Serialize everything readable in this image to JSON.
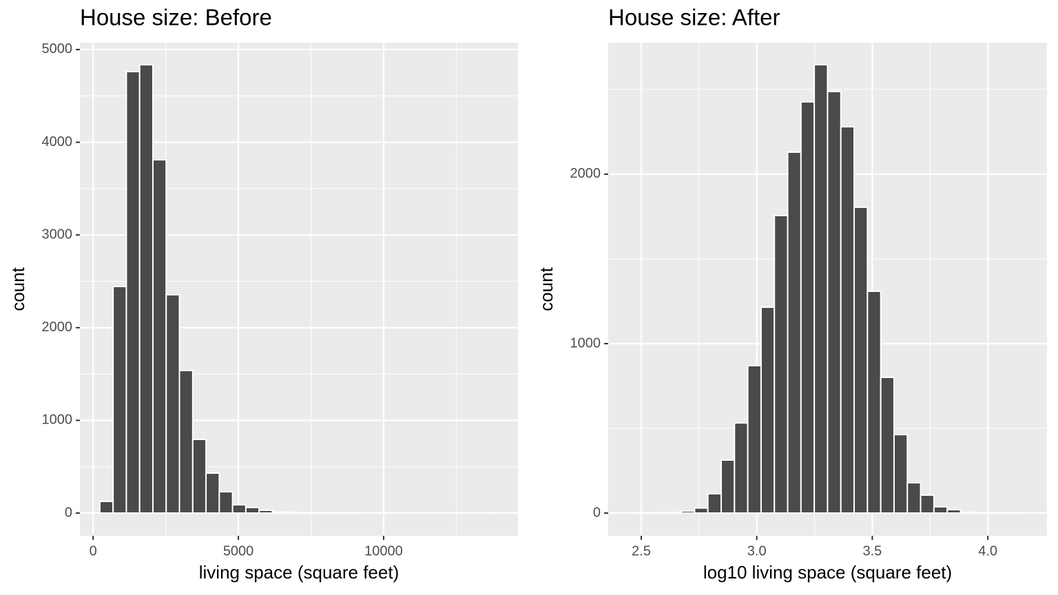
{
  "chart_data": [
    {
      "type": "histogram",
      "title": "House size: Before",
      "x_label": "living space (square feet)",
      "y_label": "count",
      "bins": [
        230,
        687,
        1144,
        1601,
        2058,
        2515,
        2972,
        3429,
        3886,
        4343,
        4800,
        5257,
        5714,
        6171,
        6628,
        7085,
        7542,
        7999,
        8456,
        8913,
        9370,
        9827,
        10284,
        10741,
        11198,
        11655,
        12112,
        12569,
        13026,
        13483,
        13940
      ],
      "values": [
        126,
        2444,
        4762,
        4836,
        3811,
        2355,
        1538,
        795,
        431,
        230,
        89,
        60,
        30,
        10,
        8,
        5,
        3,
        2,
        1,
        1,
        0,
        1,
        0,
        0,
        0,
        0,
        0,
        0,
        0,
        1
      ],
      "color": "#4a4a4a",
      "xlim": [
        -455,
        14625
      ],
      "ylim": [
        -245,
        5074
      ],
      "xticks": [
        0,
        5000,
        10000
      ],
      "yticks": [
        0,
        1000,
        2000,
        3000,
        4000,
        5000
      ],
      "minor_xticks": [
        2500,
        7500,
        12500
      ],
      "minor_yticks": [
        500,
        1500,
        2500,
        3500,
        4500
      ],
      "grid": true
    },
    {
      "type": "histogram",
      "title": "House size: After",
      "x_label": "log10 living space (square feet)",
      "y_label": "count",
      "bins": [
        2.443,
        2.5006,
        2.5581,
        2.6157,
        2.6732,
        2.7308,
        2.7883,
        2.8459,
        2.9034,
        2.961,
        3.0186,
        3.0761,
        3.1337,
        3.1912,
        3.2488,
        3.3063,
        3.3639,
        3.4214,
        3.479,
        3.5366,
        3.5941,
        3.6517,
        3.7092,
        3.7668,
        3.8243,
        3.8819,
        3.9394,
        3.997,
        4.0546,
        4.1121,
        4.1697
      ],
      "values": [
        1,
        0,
        3,
        4,
        12,
        30,
        114,
        313,
        532,
        870,
        1215,
        1756,
        2130,
        2427,
        2646,
        2488,
        2280,
        1805,
        1309,
        801,
        463,
        179,
        106,
        37,
        20,
        5,
        2,
        1,
        1,
        1
      ],
      "color": "#4a4a4a",
      "xlim": [
        2.357,
        4.256
      ],
      "ylim": [
        -134,
        2776
      ],
      "xticks": [
        2.5,
        {
          "value": 3,
          "label": "3.0"
        },
        3.5,
        {
          "value": 4,
          "label": "4.0"
        }
      ],
      "yticks": [
        0,
        1000,
        2000
      ],
      "minor_xticks": [
        2.75,
        3.25,
        3.75
      ],
      "minor_yticks": [
        500,
        1500,
        2500
      ],
      "grid": true
    }
  ]
}
